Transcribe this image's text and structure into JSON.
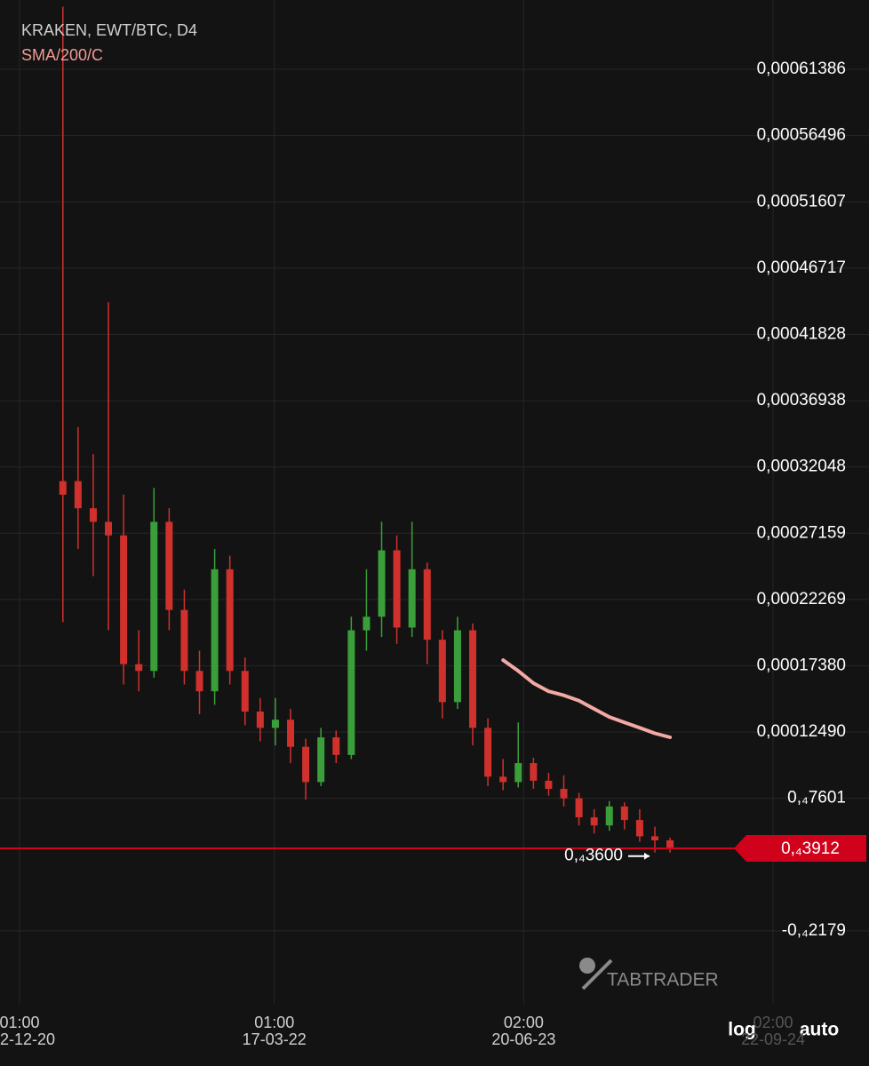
{
  "chart_data": {
    "type": "candlestick",
    "title": "KRAKEN, EWT/BTC, D4",
    "up_color": "#3a9f3a",
    "down_color": "#d0312d",
    "grid": true,
    "x": [
      "2021-02-20",
      "2021-03-20",
      "2021-04-17",
      "2021-05-15",
      "2021-06-12",
      "2021-07-10",
      "2021-08-07",
      "2021-09-04",
      "2021-10-02",
      "2021-10-30",
      "2021-11-27",
      "2021-12-25",
      "2022-01-22",
      "2022-02-19",
      "2022-03-19",
      "2022-04-16",
      "2022-05-14",
      "2022-06-11",
      "2022-07-09",
      "2022-08-06",
      "2022-09-03",
      "2022-10-01",
      "2022-10-29",
      "2022-11-26",
      "2022-12-24",
      "2023-01-21",
      "2023-02-18",
      "2023-03-18",
      "2023-04-15",
      "2023-05-13",
      "2023-06-10",
      "2023-07-08",
      "2023-08-05",
      "2023-09-02",
      "2023-09-30",
      "2023-10-28",
      "2023-11-25",
      "2023-12-23",
      "2024-01-20",
      "2024-02-17",
      "2024-03-16"
    ],
    "open": [
      0.00031,
      0.00031,
      0.00029,
      0.00028,
      0.00027,
      0.000175,
      0.00017,
      0.00028,
      0.000215,
      0.00017,
      0.000155,
      0.000245,
      0.00017,
      0.00014,
      0.000128,
      0.000134,
      0.000114,
      8.8e-05,
      0.000121,
      0.000108,
      0.0002,
      0.00021,
      0.000259,
      0.000202,
      0.000245,
      0.000193,
      0.000147,
      0.0002,
      0.000128,
      9.2e-05,
      8.8e-05,
      0.000102,
      8.9e-05,
      8.3e-05,
      7.6e-05,
      6.2e-05,
      5.6e-05,
      7e-05,
      6e-05,
      4.8e-05,
      4.5e-05
    ],
    "high": [
      0.00066,
      0.00035,
      0.00033,
      0.000442,
      0.0003,
      0.0002,
      0.000305,
      0.00029,
      0.00023,
      0.000185,
      0.00026,
      0.000255,
      0.00018,
      0.00015,
      0.00015,
      0.000142,
      0.00012,
      0.000128,
      0.000126,
      0.00021,
      0.000245,
      0.00028,
      0.00027,
      0.00028,
      0.00025,
      0.0002,
      0.00021,
      0.000205,
      0.000135,
      0.000105,
      0.000132,
      0.000106,
      9.5e-05,
      9.3e-05,
      8e-05,
      6.8e-05,
      7.4e-05,
      7.3e-05,
      6.8e-05,
      5.5e-05,
      4.7e-05
    ],
    "low": [
      0.000206,
      0.00026,
      0.00024,
      0.0002,
      0.00016,
      0.000155,
      0.000165,
      0.0002,
      0.00016,
      0.000138,
      0.000145,
      0.00016,
      0.00013,
      0.000118,
      0.000115,
      0.000102,
      7.5e-05,
      8.5e-05,
      0.000102,
      0.000105,
      0.000185,
      0.000195,
      0.00019,
      0.000195,
      0.000175,
      0.000135,
      0.000142,
      0.000115,
      8.5e-05,
      8.2e-05,
      8.4e-05,
      8.3e-05,
      7.8e-05,
      7e-05,
      5.6e-05,
      5e-05,
      5.2e-05,
      5.3e-05,
      4.4e-05,
      3.6e-05,
      3.6e-05
    ],
    "close": [
      0.0003,
      0.00029,
      0.00028,
      0.00027,
      0.000175,
      0.00017,
      0.00028,
      0.000215,
      0.00017,
      0.000155,
      0.000245,
      0.00017,
      0.00014,
      0.000128,
      0.000134,
      0.000114,
      8.8e-05,
      0.000121,
      0.000108,
      0.0002,
      0.00021,
      0.000259,
      0.000202,
      0.000245,
      0.000193,
      0.000147,
      0.0002,
      0.000128,
      9.2e-05,
      8.8e-05,
      0.000102,
      8.9e-05,
      8.3e-05,
      7.6e-05,
      6.2e-05,
      5.6e-05,
      7e-05,
      6e-05,
      4.8e-05,
      4.5e-05,
      3.912e-05
    ],
    "overlays": [
      {
        "name": "SMA/200/C",
        "color": "#f3aaa4",
        "values": [
          null,
          null,
          null,
          null,
          null,
          null,
          null,
          null,
          null,
          null,
          null,
          null,
          null,
          null,
          null,
          null,
          null,
          null,
          null,
          null,
          null,
          null,
          null,
          null,
          null,
          null,
          null,
          null,
          null,
          0.000178,
          0.00017,
          0.000161,
          0.000155,
          0.000152,
          0.000148,
          0.000142,
          0.000136,
          0.000132,
          0.000128,
          0.000124,
          0.000121
        ]
      }
    ],
    "ylim": [
      -7.56e-05,
      0.000665
    ],
    "yticks": [
      {
        "value": 0.00061386,
        "label": "0,00061386"
      },
      {
        "value": 0.00056496,
        "label": "0,00056496"
      },
      {
        "value": 0.00051607,
        "label": "0,00051607"
      },
      {
        "value": 0.00046717,
        "label": "0,00046717"
      },
      {
        "value": 0.00041828,
        "label": "0,00041828"
      },
      {
        "value": 0.00036938,
        "label": "0,00036938"
      },
      {
        "value": 0.00032048,
        "label": "0,00032048"
      },
      {
        "value": 0.00027159,
        "label": "0,00027159"
      },
      {
        "value": 0.00022269,
        "label": "0,00022269"
      },
      {
        "value": 0.0001738,
        "label": "0,00017380"
      },
      {
        "value": 0.0001249,
        "label": "0,00012490"
      },
      {
        "value": 7.601e-05,
        "label": "0,₄7601"
      },
      {
        "value": -2.179e-05,
        "label": "-0,₄2179"
      }
    ],
    "xlim": [
      "2020-10-27",
      "2025-03-18"
    ],
    "xticks": [
      {
        "value": "2020-12-02",
        "time": "01:00",
        "label": "2-12-20"
      },
      {
        "value": "2022-03-17",
        "time": "01:00",
        "label": "17-03-22"
      },
      {
        "value": "2023-06-20",
        "time": "02:00",
        "label": "20-06-23"
      },
      {
        "value": "2024-09-22",
        "time": "02:00",
        "label": "22-09-24"
      }
    ],
    "last_price": {
      "value": 3.912e-05,
      "label": "0,₄3912",
      "color": "#d0021b"
    },
    "min_marker": {
      "value": 3.6e-05,
      "label": "0,₄3600"
    },
    "scale_buttons": [
      "log",
      "auto"
    ],
    "watermark": "TABTRADER"
  }
}
